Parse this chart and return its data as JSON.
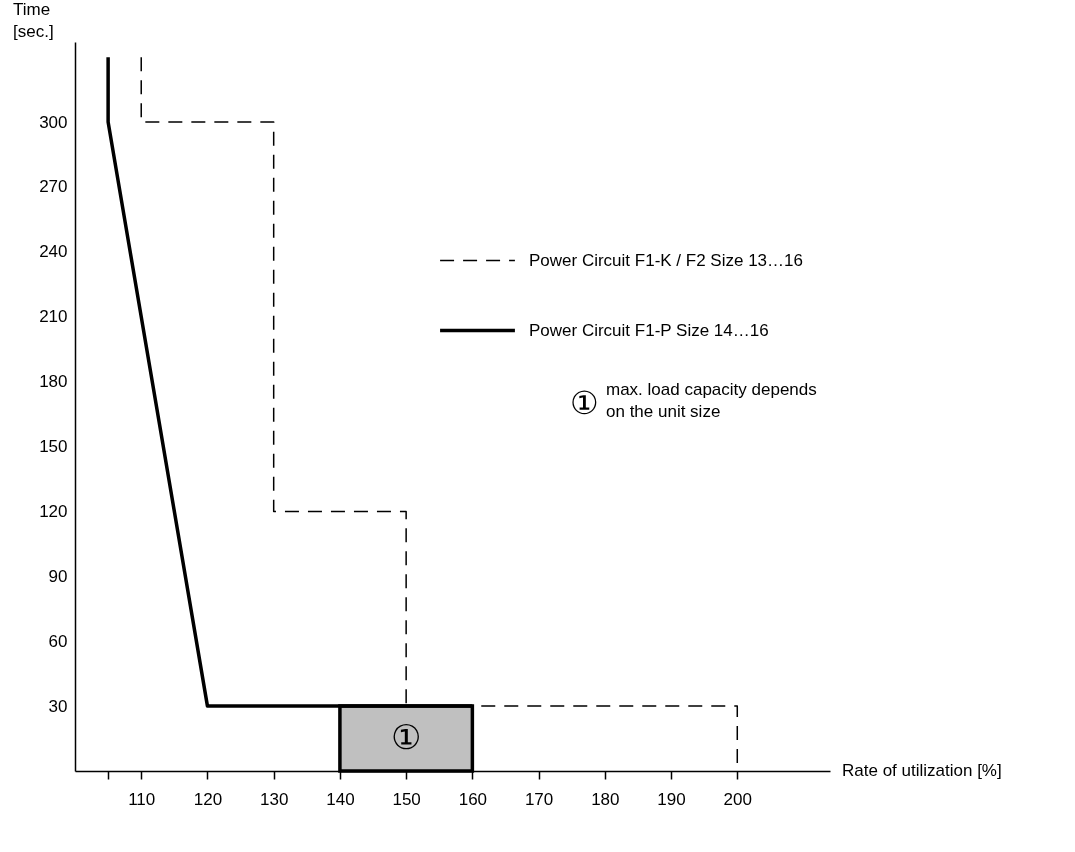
{
  "chart_data": {
    "type": "line",
    "xlabel": "Rate of utilization [%]",
    "ylabel": "Time [sec.]",
    "xlim": [
      100,
      214
    ],
    "ylim": [
      0,
      337
    ],
    "xticks": [
      {
        "value": 105,
        "label": null
      },
      110,
      120,
      130,
      140,
      150,
      160,
      170,
      180,
      190,
      200
    ],
    "yticks": [
      30,
      60,
      90,
      120,
      150,
      180,
      210,
      240,
      270,
      300
    ],
    "grid": false,
    "legend": "right",
    "series": [
      {
        "type": "bar",
        "color": "#c0c0c0",
        "x": [
          150
        ],
        "values": [
          30
        ]
      },
      {
        "name": "Power Circuit F1-K / F2   Size 13…16",
        "color": "#000000",
        "line_style": "dashed",
        "x": [
          110,
          110,
          130,
          130,
          150,
          150,
          200,
          200
        ],
        "values": [
          330,
          300,
          300,
          120,
          120,
          30,
          30,
          0
        ]
      },
      {
        "name": "Power Circuit F1-P           Size 14…16",
        "color": "#000000",
        "line_style": "solid",
        "x": [
          105,
          105,
          120,
          160
        ],
        "values": [
          330,
          300,
          30,
          30
        ]
      }
    ],
    "annotations": [
      "①",
      "① max. load capacity depends on the unit size"
    ]
  }
}
